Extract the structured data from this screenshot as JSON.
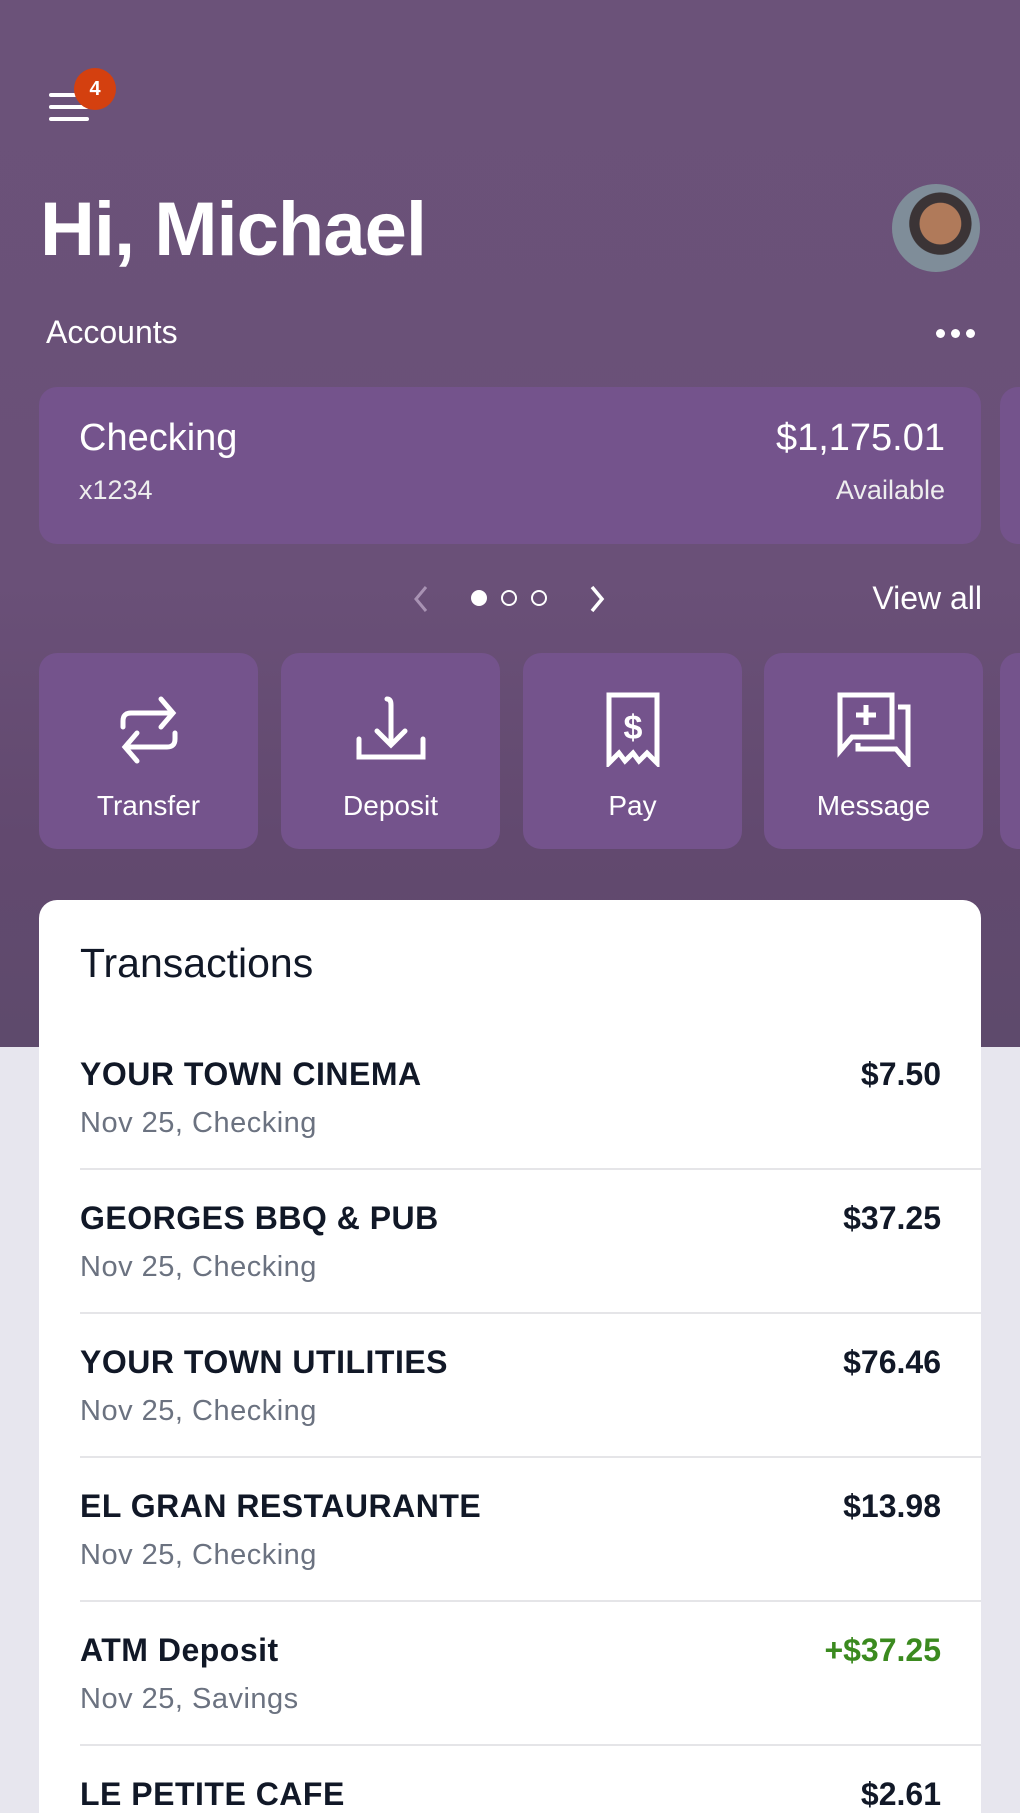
{
  "header": {
    "greeting": "Hi, Michael",
    "notification_count": "4"
  },
  "accounts": {
    "label": "Accounts",
    "cards": [
      {
        "name": "Checking",
        "number": "x1234",
        "balance": "$1,175.01",
        "balance_label": "Available"
      }
    ],
    "pager": {
      "current": 1,
      "total": 3
    },
    "view_all": "View all"
  },
  "actions": [
    {
      "label": "Transfer",
      "icon": "transfer-icon"
    },
    {
      "label": "Deposit",
      "icon": "deposit-icon"
    },
    {
      "label": "Pay",
      "icon": "receipt-dollar-icon"
    },
    {
      "label": "Message",
      "icon": "message-plus-icon"
    }
  ],
  "transactions": {
    "title": "Transactions",
    "items": [
      {
        "name": "YOUR TOWN CINEMA",
        "detail": "Nov 25, Checking",
        "amount": "$7.50"
      },
      {
        "name": "GEORGES BBQ & PUB",
        "detail": "Nov 25, Checking",
        "amount": "$37.25"
      },
      {
        "name": "YOUR TOWN UTILITIES",
        "detail": "Nov 25, Checking",
        "amount": "$76.46"
      },
      {
        "name": "EL GRAN RESTAURANTE",
        "detail": "Nov 25, Checking",
        "amount": "$13.98"
      },
      {
        "name": "ATM Deposit",
        "detail": "Nov 25, Savings",
        "amount": "+$37.25",
        "credit": true
      },
      {
        "name": "LE PETITE CAFE",
        "detail": "",
        "amount": "$2.61"
      }
    ]
  },
  "colors": {
    "hero": "#6b5279",
    "card": "#74538c",
    "badge": "#d4400f",
    "credit": "#3b8a1f"
  }
}
